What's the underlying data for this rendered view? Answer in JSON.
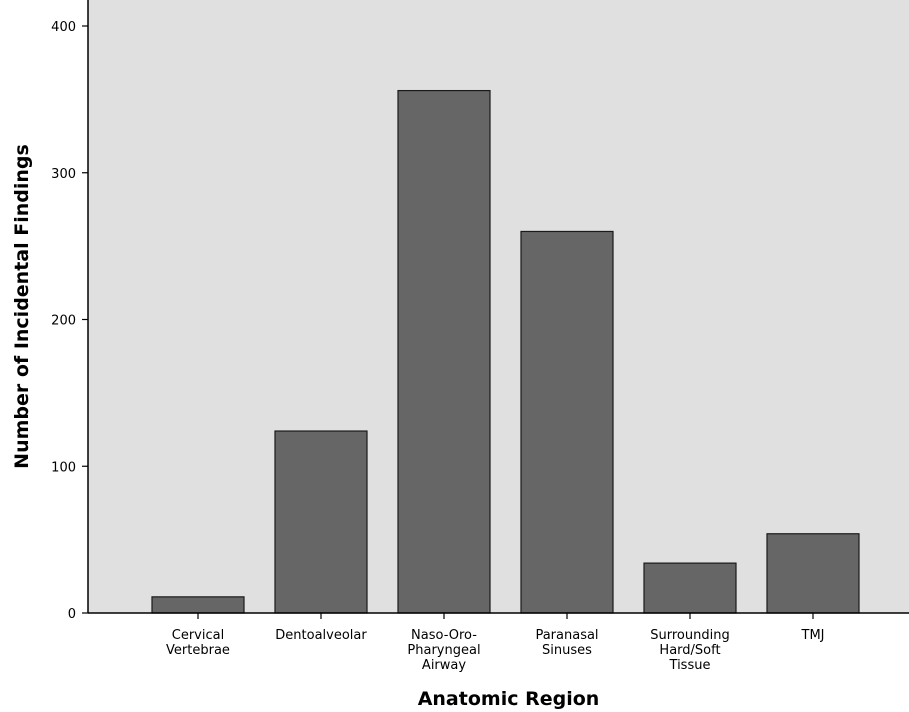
{
  "chart_data": {
    "type": "bar",
    "title": "",
    "xlabel": "Anatomic Region",
    "ylabel": "Number of Incidental Findings",
    "ylim": [
      0,
      400
    ],
    "yticks": [
      "0",
      "100",
      "200",
      "300",
      "400"
    ],
    "grid": false,
    "categories": [
      [
        "Cervical",
        "Vertebrae"
      ],
      [
        "Dentoalveolar"
      ],
      [
        "Naso-Oro-",
        "Pharyngeal",
        "Airway"
      ],
      [
        "Paranasal",
        "Sinuses"
      ],
      [
        "Surrounding",
        "Hard/Soft",
        "Tissue"
      ],
      [
        "TMJ"
      ]
    ],
    "values": [
      11,
      124,
      356,
      260,
      34,
      54
    ],
    "colors": {
      "plot_background": "#e0e0e0",
      "bar_fill": "#666666",
      "bar_stroke": "#1a1a1a",
      "axis": "#000000"
    }
  }
}
